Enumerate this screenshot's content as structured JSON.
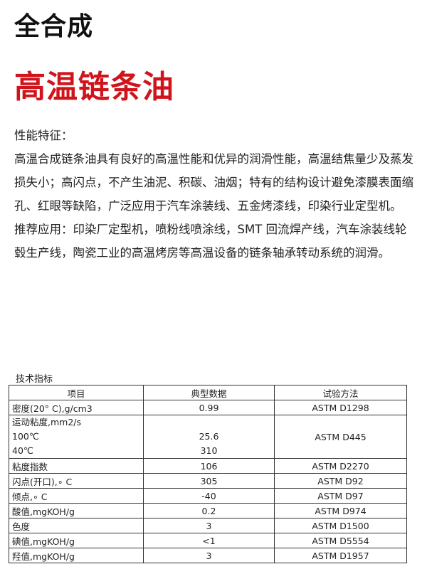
{
  "title_line1": "全合成",
  "title_line2": "高温链条油",
  "colors": {
    "title_red": "#d0141b"
  },
  "features_heading": "性能特征：",
  "features_text": "高温合成链条油具有良好的高温性能和优异的润滑性能，高温结焦量少及蒸发损失小；高闪点，不产生油泥、积碳、油烟；特有的结构设计避免漆膜表面缩孔、红眼等缺陷，广泛应用于汽车涂装线、五金烤漆线，印染行业定型机。",
  "applications_text": "推荐应用：印染厂定型机，喷粉线喷涂线，SMT 回流焊产线，汽车涂装线轮毂生产线，陶瓷工业的高温烤房等高温设备的链条轴承转动系统的润滑。",
  "spec_caption": "技术指标",
  "table": {
    "headers": [
      "项目",
      "典型数据",
      "试验方法"
    ],
    "viscosity": {
      "label": "运动粘度,mm2/s",
      "sub1": "100℃",
      "sub2": "40℃",
      "val1": "25.6",
      "val2": "310",
      "method": "ASTM D445"
    },
    "rows": [
      [
        "密度(20° C),g/cm3",
        "0.99",
        "ASTM D1298"
      ],
      [
        "粘度指数",
        "106",
        "ASTM D2270"
      ],
      [
        "闪点(开口),∘ C",
        "305",
        "ASTM D92"
      ],
      [
        "倾点,∘ C",
        "-40",
        "ASTM D97"
      ],
      [
        "酸值,mgKOH/g",
        "0.2",
        "ASTM D974"
      ],
      [
        "色度",
        "3",
        "ASTM D1500"
      ],
      [
        "碘值,mgKOH/g",
        "<1",
        "ASTM D5554"
      ],
      [
        "羟值,mgKOH/g",
        "3",
        "ASTM D1957"
      ]
    ]
  }
}
